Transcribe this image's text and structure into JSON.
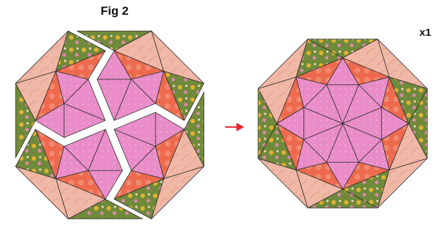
{
  "figure": {
    "title": "Fig 2",
    "count": "x1"
  },
  "colors": {
    "pink": "#e98cc8",
    "coral": "#ee6a4e",
    "peach": "#f0b8a6",
    "green": "#6f8a3a",
    "arrow": "#e8262c",
    "outline": "#2a2a2a",
    "gap": "#ffffff"
  },
  "icons": {
    "arrow": "arrow-right-icon"
  },
  "blocks": [
    {
      "name": "separated-pieces",
      "state": "split into four sections"
    },
    {
      "name": "joined-block",
      "state": "sewn"
    }
  ]
}
